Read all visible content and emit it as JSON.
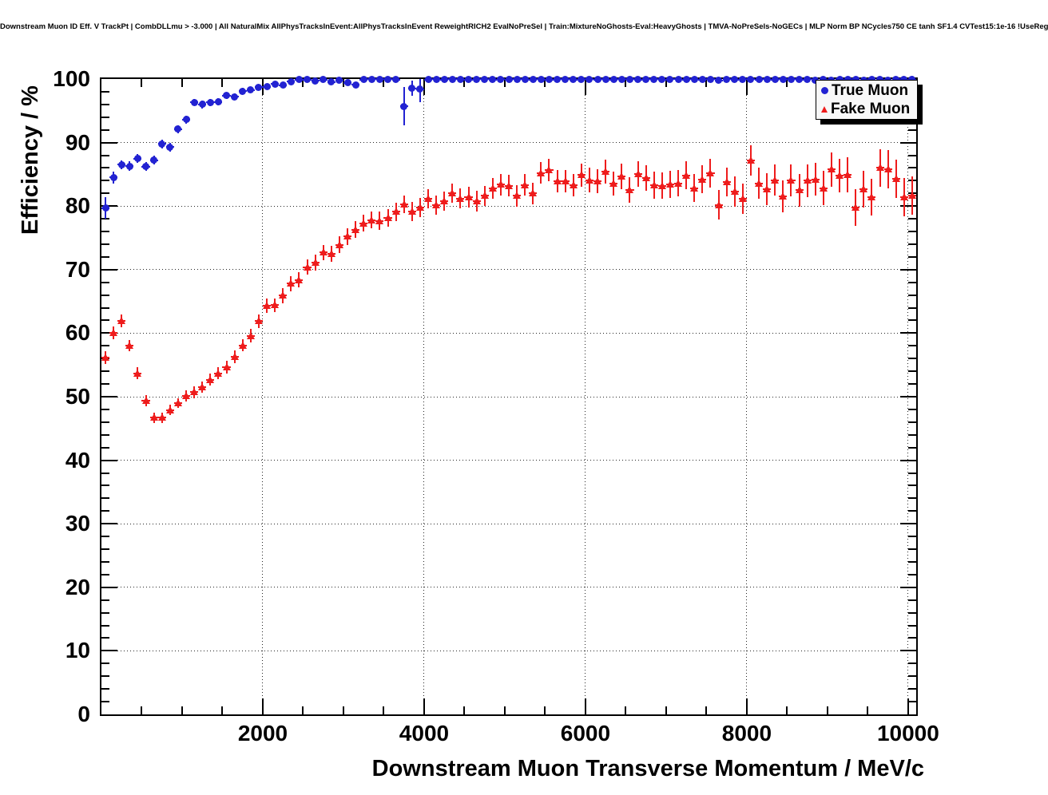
{
  "chart_data": {
    "type": "scatter",
    "title": "Downstream Muon ID Eff. V TrackPt | CombDLLmu > -3.000 | All NaturalMix AllPhysTracksInEvent:AllPhysTracksInEvent ReweightRICH2 EvalNoPreSel | Train:MixtureNoGhosts-Eval:HeavyGhosts | TMVA-NoPreSels-NoGECs | MLP Norm BP NCycles750 CE tanh SF1.4 CVTest15:1e-16 !UseReg",
    "xlabel": "Downstream Muon Transverse Momentum / MeV/c",
    "ylabel": "Efficiency / %",
    "xlim": [
      0,
      10100
    ],
    "ylim": [
      0,
      100
    ],
    "x_ticks": [
      2000,
      4000,
      6000,
      8000,
      10000
    ],
    "x_minor_step": 500,
    "y_ticks": [
      0,
      10,
      20,
      30,
      40,
      50,
      60,
      70,
      80,
      90,
      100
    ],
    "y_minor_step": 2,
    "grid": "dotted lines at major ticks, both axes",
    "legend_position": "top-right",
    "bin_half_width": 50,
    "series": [
      {
        "name": "True Muon",
        "marker": "circle",
        "color": "#2222d2",
        "points": [
          [
            50,
            79.7,
            1.7
          ],
          [
            150,
            84.5,
            0.9
          ],
          [
            250,
            86.5,
            0.7
          ],
          [
            350,
            86.3,
            0.7
          ],
          [
            450,
            87.5,
            0.7
          ],
          [
            550,
            86.2,
            0.7
          ],
          [
            650,
            87.2,
            0.7
          ],
          [
            750,
            89.8,
            0.7
          ],
          [
            850,
            89.3,
            0.7
          ],
          [
            950,
            92.1,
            0.6
          ],
          [
            1050,
            93.6,
            0.6
          ],
          [
            1150,
            96.3,
            0.5
          ],
          [
            1250,
            96.0,
            0.6
          ],
          [
            1350,
            96.3,
            0.6
          ],
          [
            1450,
            96.4,
            0.6
          ],
          [
            1550,
            97.4,
            0.5
          ],
          [
            1650,
            97.2,
            0.5
          ],
          [
            1750,
            98.1,
            0.5
          ],
          [
            1850,
            98.3,
            0.4
          ],
          [
            1950,
            98.7,
            0.4
          ],
          [
            2050,
            98.8,
            0.4
          ],
          [
            2150,
            99.2,
            0.3
          ],
          [
            2250,
            99.0,
            0.4
          ],
          [
            2350,
            99.6,
            0.3
          ],
          [
            2450,
            99.9,
            0.2
          ],
          [
            2550,
            99.9,
            0.2
          ],
          [
            2650,
            99.7,
            0.2
          ],
          [
            2750,
            99.9,
            0.2
          ],
          [
            2850,
            99.5,
            0.3
          ],
          [
            2950,
            99.8,
            0.2
          ],
          [
            3050,
            99.4,
            0.3
          ],
          [
            3150,
            99.1,
            0.4
          ],
          [
            3250,
            99.9,
            0.2
          ],
          [
            3350,
            100,
            0.1
          ],
          [
            3450,
            100,
            0.1
          ],
          [
            3550,
            100,
            0.1
          ],
          [
            3650,
            99.9,
            0.1
          ],
          [
            3750,
            95.7,
            3.0
          ],
          [
            3850,
            98.5,
            1.2
          ],
          [
            3950,
            98.4,
            2.0
          ],
          [
            4050,
            99.9,
            0.2
          ],
          [
            4150,
            100,
            0.1
          ],
          [
            4250,
            99.9,
            0.1
          ],
          [
            4350,
            100,
            0.1
          ],
          [
            4450,
            100,
            0.1
          ],
          [
            4550,
            99.9,
            0.1
          ],
          [
            4650,
            100,
            0.1
          ],
          [
            4750,
            100,
            0.1
          ],
          [
            4850,
            99.9,
            0.1
          ],
          [
            4950,
            100,
            0.1
          ],
          [
            5050,
            99.9,
            0.1
          ],
          [
            5150,
            100,
            0.1
          ],
          [
            5250,
            100,
            0.1
          ],
          [
            5350,
            99.9,
            0.1
          ],
          [
            5450,
            100,
            0.1
          ],
          [
            5550,
            99.9,
            0.1
          ],
          [
            5650,
            100,
            0.1
          ],
          [
            5750,
            100,
            0.1
          ],
          [
            5850,
            99.9,
            0.1
          ],
          [
            5950,
            100,
            0.1
          ],
          [
            6050,
            100,
            0.1
          ],
          [
            6150,
            99.9,
            0.1
          ],
          [
            6250,
            100,
            0.1
          ],
          [
            6350,
            99.9,
            0.1
          ],
          [
            6450,
            100,
            0.1
          ],
          [
            6550,
            100,
            0.1
          ],
          [
            6650,
            99.9,
            0.1
          ],
          [
            6750,
            100,
            0.1
          ],
          [
            6850,
            100,
            0.1
          ],
          [
            6950,
            99.9,
            0.1
          ],
          [
            7050,
            100,
            0.1
          ],
          [
            7150,
            100,
            0.1
          ],
          [
            7250,
            99.9,
            0.1
          ],
          [
            7350,
            100,
            0.1
          ],
          [
            7450,
            99.9,
            0.1
          ],
          [
            7550,
            100,
            0.1
          ],
          [
            7650,
            99.8,
            0.2
          ],
          [
            7750,
            100,
            0.1
          ],
          [
            7850,
            99.9,
            0.1
          ],
          [
            7950,
            100,
            0.1
          ],
          [
            8050,
            100,
            0.1
          ],
          [
            8150,
            99.9,
            0.1
          ],
          [
            8250,
            100,
            0.1
          ],
          [
            8350,
            99.9,
            0.1
          ],
          [
            8450,
            100,
            0.1
          ],
          [
            8550,
            100,
            0.1
          ],
          [
            8650,
            99.9,
            0.1
          ],
          [
            8750,
            100,
            0.1
          ],
          [
            8850,
            99.8,
            0.2
          ],
          [
            8950,
            99.9,
            0.2
          ],
          [
            9050,
            99.8,
            0.2
          ],
          [
            9150,
            100,
            0.1
          ],
          [
            9250,
            99.9,
            0.2
          ],
          [
            9350,
            100,
            0.1
          ],
          [
            9450,
            99.8,
            0.2
          ],
          [
            9550,
            100,
            0.1
          ],
          [
            9650,
            99.9,
            0.2
          ],
          [
            9750,
            99.8,
            0.2
          ],
          [
            9850,
            100,
            0.1
          ],
          [
            9950,
            99.9,
            0.2
          ],
          [
            10050,
            99.9,
            0.2
          ]
        ]
      },
      {
        "name": "Fake Muon",
        "marker": "triangle",
        "color": "#ee1c1c",
        "points": [
          [
            50,
            56.2,
            1.0
          ],
          [
            150,
            60.0,
            1.0
          ],
          [
            250,
            61.9,
            1.0
          ],
          [
            350,
            58.0,
            0.9
          ],
          [
            450,
            53.7,
            0.9
          ],
          [
            550,
            49.4,
            0.9
          ],
          [
            650,
            46.7,
            0.8
          ],
          [
            750,
            46.7,
            0.8
          ],
          [
            850,
            47.9,
            0.8
          ],
          [
            950,
            49.0,
            0.8
          ],
          [
            1050,
            50.1,
            0.9
          ],
          [
            1150,
            50.7,
            0.9
          ],
          [
            1250,
            51.5,
            0.9
          ],
          [
            1350,
            52.7,
            0.9
          ],
          [
            1450,
            53.7,
            1.0
          ],
          [
            1550,
            54.7,
            1.0
          ],
          [
            1650,
            56.3,
            1.0
          ],
          [
            1750,
            58.1,
            1.0
          ],
          [
            1850,
            59.6,
            1.1
          ],
          [
            1950,
            61.9,
            1.1
          ],
          [
            2050,
            64.3,
            1.1
          ],
          [
            2150,
            64.4,
            1.1
          ],
          [
            2250,
            65.9,
            1.2
          ],
          [
            2350,
            67.8,
            1.2
          ],
          [
            2450,
            68.4,
            1.2
          ],
          [
            2550,
            70.4,
            1.2
          ],
          [
            2650,
            71.1,
            1.2
          ],
          [
            2750,
            72.7,
            1.2
          ],
          [
            2850,
            72.5,
            1.3
          ],
          [
            2950,
            73.9,
            1.3
          ],
          [
            3050,
            75.2,
            1.3
          ],
          [
            3150,
            76.3,
            1.3
          ],
          [
            3250,
            77.3,
            1.3
          ],
          [
            3350,
            77.8,
            1.3
          ],
          [
            3450,
            77.7,
            1.4
          ],
          [
            3550,
            78.1,
            1.4
          ],
          [
            3650,
            79.1,
            1.4
          ],
          [
            3750,
            80.3,
            1.4
          ],
          [
            3850,
            79.2,
            1.5
          ],
          [
            3950,
            79.8,
            1.5
          ],
          [
            4050,
            81.2,
            1.5
          ],
          [
            4150,
            80.1,
            1.5
          ],
          [
            4250,
            80.8,
            1.5
          ],
          [
            4350,
            82.0,
            1.5
          ],
          [
            4450,
            81.2,
            1.6
          ],
          [
            4550,
            81.4,
            1.6
          ],
          [
            4650,
            80.8,
            1.6
          ],
          [
            4750,
            81.6,
            1.6
          ],
          [
            4850,
            82.8,
            1.6
          ],
          [
            4950,
            83.4,
            1.7
          ],
          [
            5050,
            83.2,
            1.7
          ],
          [
            5150,
            81.6,
            1.7
          ],
          [
            5250,
            83.3,
            1.7
          ],
          [
            5350,
            82.0,
            1.7
          ],
          [
            5450,
            85.2,
            1.7
          ],
          [
            5550,
            85.7,
            1.8
          ],
          [
            5650,
            83.9,
            1.8
          ],
          [
            5750,
            83.9,
            1.8
          ],
          [
            5850,
            83.3,
            1.8
          ],
          [
            5950,
            84.9,
            1.8
          ],
          [
            6050,
            84.1,
            1.9
          ],
          [
            6150,
            83.9,
            1.9
          ],
          [
            6250,
            85.4,
            1.9
          ],
          [
            6350,
            83.5,
            1.9
          ],
          [
            6450,
            84.7,
            2.0
          ],
          [
            6550,
            82.5,
            2.0
          ],
          [
            6650,
            85.0,
            2.0
          ],
          [
            6750,
            84.4,
            2.0
          ],
          [
            6850,
            83.3,
            2.1
          ],
          [
            6950,
            83.2,
            2.1
          ],
          [
            7050,
            83.4,
            2.1
          ],
          [
            7150,
            83.6,
            2.1
          ],
          [
            7250,
            84.8,
            2.2
          ],
          [
            7350,
            82.8,
            2.2
          ],
          [
            7450,
            84.2,
            2.2
          ],
          [
            7550,
            85.2,
            2.3
          ],
          [
            7650,
            80.2,
            2.3
          ],
          [
            7750,
            83.8,
            2.3
          ],
          [
            7850,
            82.3,
            2.4
          ],
          [
            7950,
            81.2,
            2.4
          ],
          [
            8050,
            87.2,
            2.4
          ],
          [
            8150,
            83.6,
            2.4
          ],
          [
            8250,
            82.7,
            2.5
          ],
          [
            8350,
            84.1,
            2.5
          ],
          [
            8450,
            81.5,
            2.5
          ],
          [
            8550,
            84.0,
            2.5
          ],
          [
            8650,
            82.5,
            2.6
          ],
          [
            8750,
            84.0,
            2.6
          ],
          [
            8850,
            84.2,
            2.6
          ],
          [
            8950,
            82.8,
            2.7
          ],
          [
            9050,
            85.8,
            2.7
          ],
          [
            9150,
            84.8,
            2.7
          ],
          [
            9250,
            84.9,
            2.8
          ],
          [
            9350,
            79.8,
            2.9
          ],
          [
            9450,
            82.7,
            2.9
          ],
          [
            9550,
            81.4,
            2.9
          ],
          [
            9650,
            86.0,
            2.9
          ],
          [
            9750,
            85.8,
            3.0
          ],
          [
            9850,
            84.3,
            3.0
          ],
          [
            9950,
            81.4,
            3.0
          ],
          [
            10050,
            81.7,
            3.0
          ]
        ]
      }
    ]
  },
  "legend": {
    "items": [
      {
        "label": "True Muon",
        "marker": "circle",
        "color": "#2222d2"
      },
      {
        "label": "Fake Muon",
        "marker": "triangle",
        "color": "#ee1c1c"
      }
    ]
  }
}
